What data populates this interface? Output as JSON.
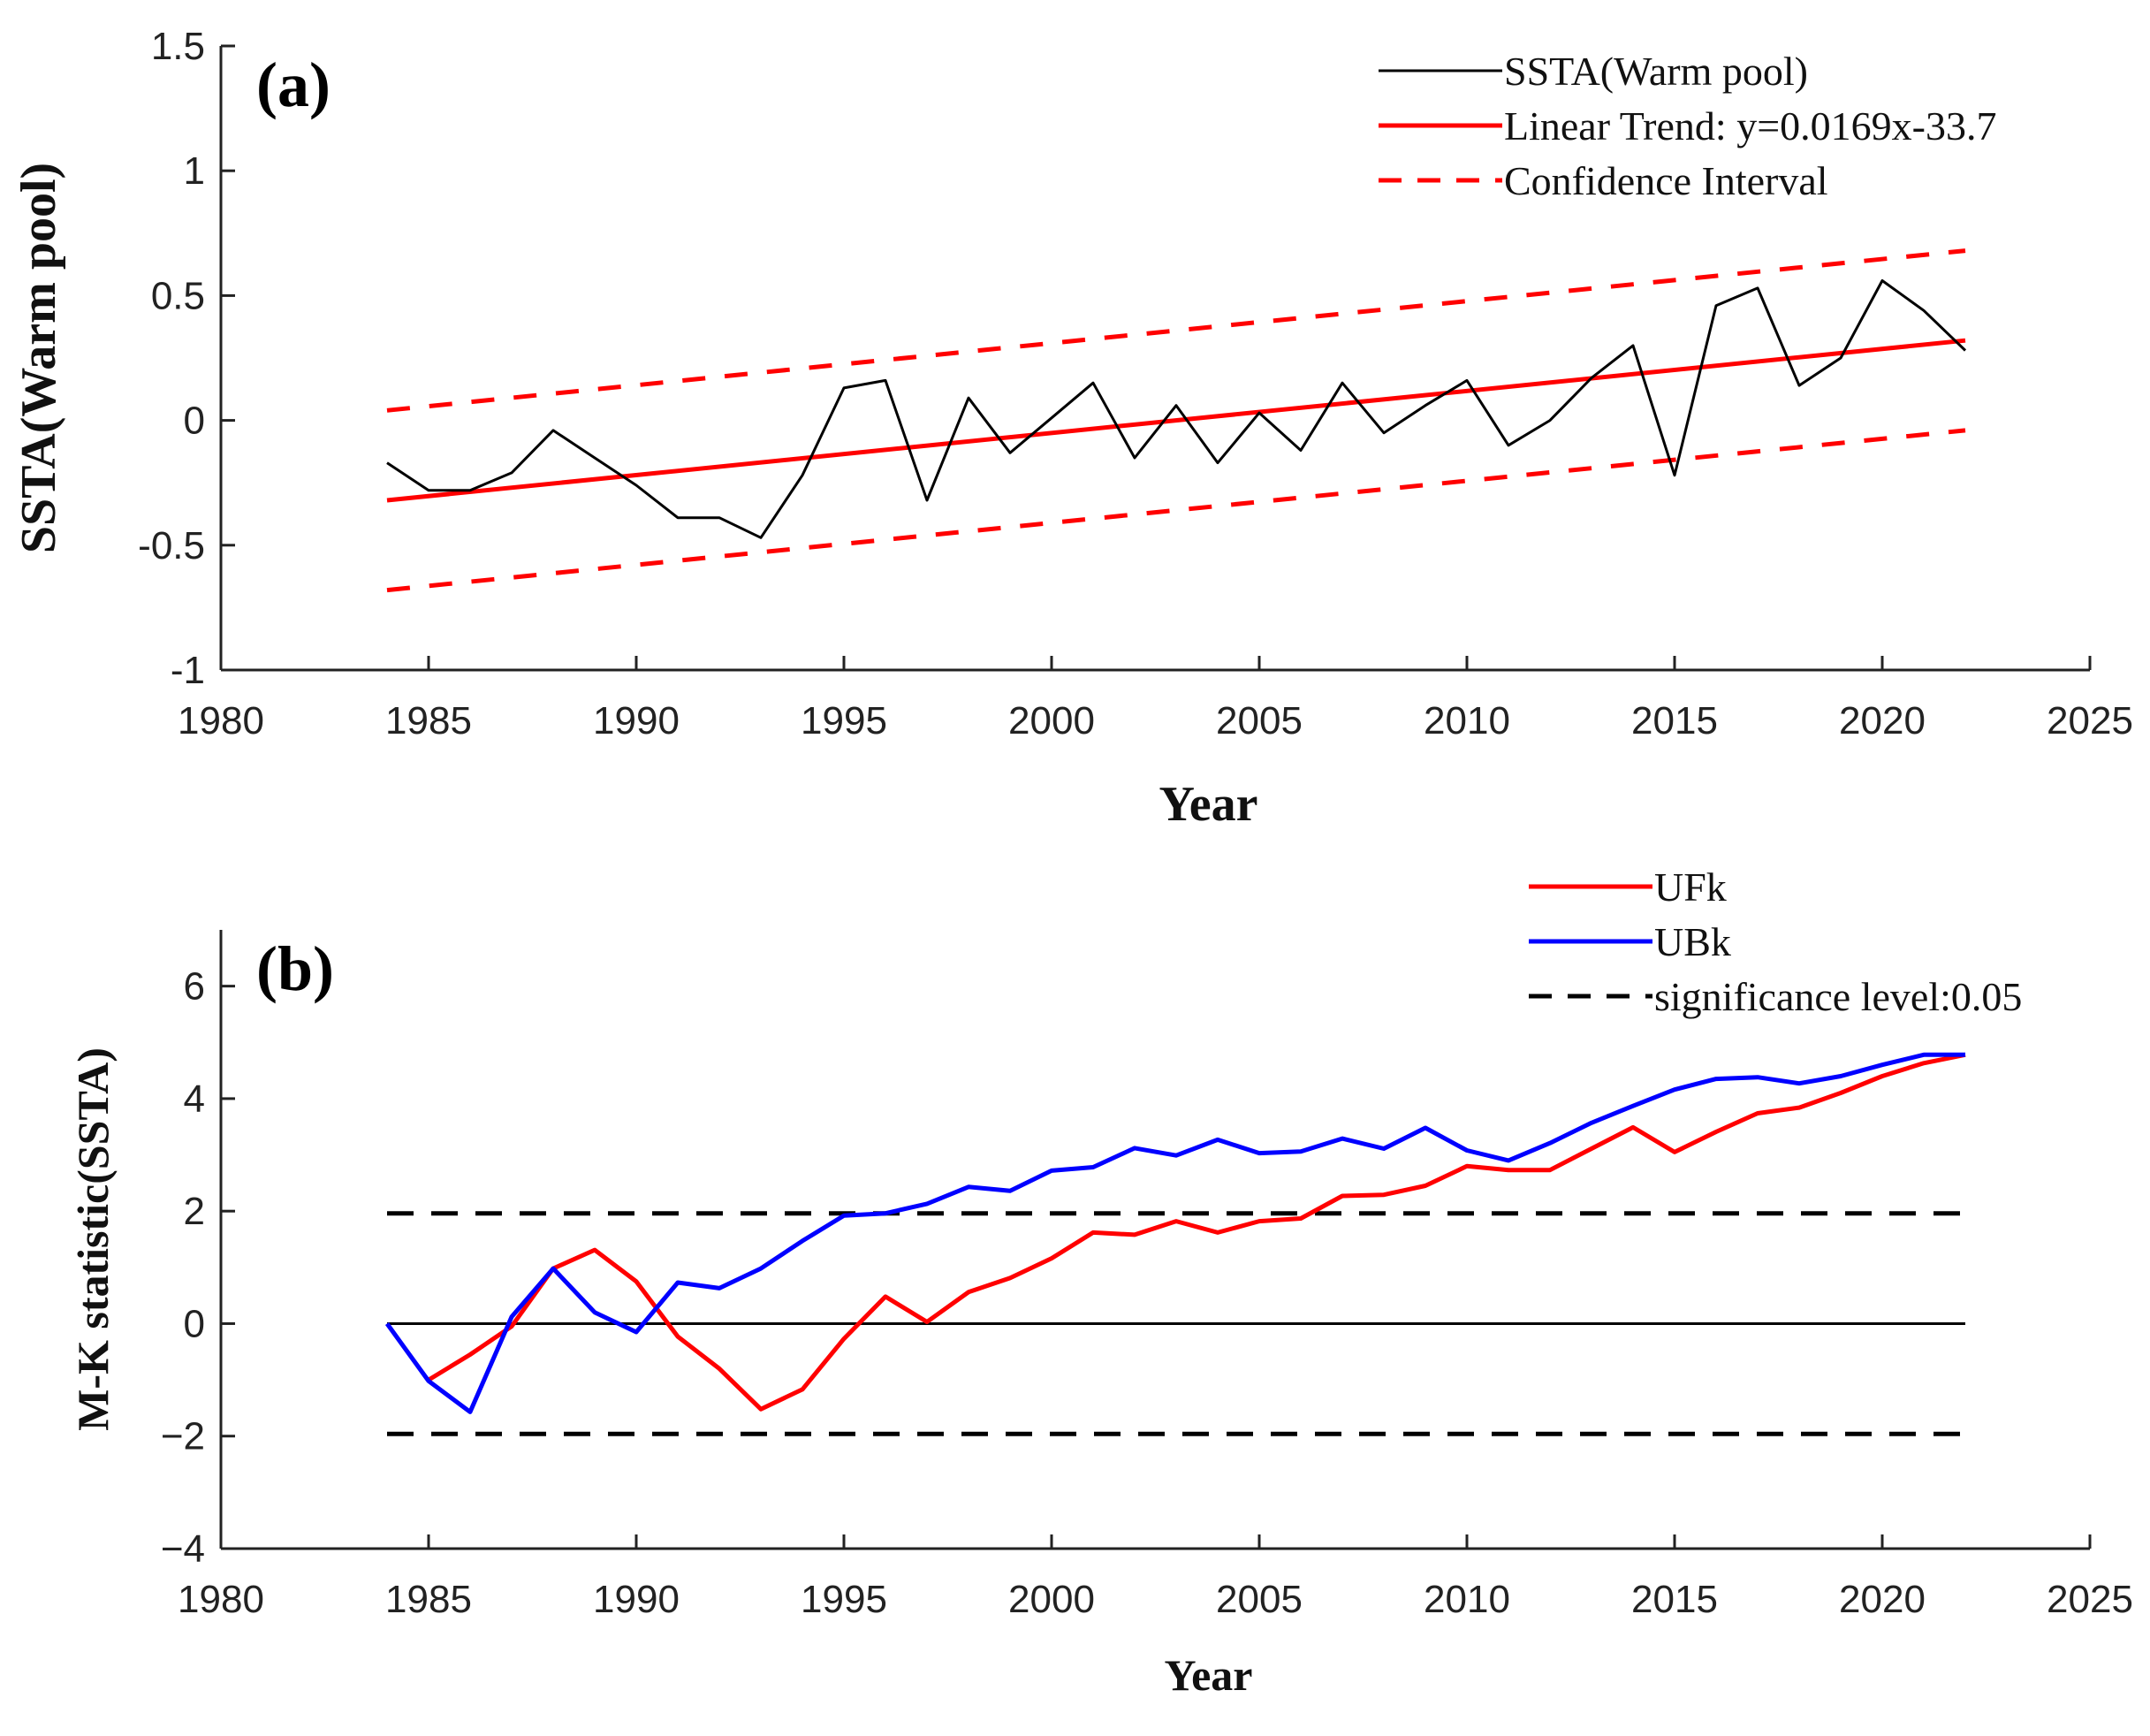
{
  "chart_data": [
    {
      "type": "line",
      "panel_label": "(a)",
      "xlabel": "Year",
      "ylabel": "SSTA(Warm pool)",
      "xlim": [
        1980,
        2025
      ],
      "ylim": [
        -1,
        1.5
      ],
      "xticks": [
        "1980",
        "1985",
        "1990",
        "1995",
        "2000",
        "2005",
        "2010",
        "2015",
        "2020",
        "2025"
      ],
      "yticks": [
        "1.5",
        "1",
        "0.5",
        "0",
        "-0.5",
        "-1"
      ],
      "legend_position": "top-right",
      "x": [
        1984,
        1985,
        1986,
        1987,
        1988,
        1989,
        1990,
        1991,
        1992,
        1993,
        1994,
        1995,
        1996,
        1997,
        1998,
        1999,
        2000,
        2001,
        2002,
        2003,
        2004,
        2005,
        2006,
        2007,
        2008,
        2009,
        2010,
        2011,
        2012,
        2013,
        2014,
        2015,
        2016,
        2017,
        2018,
        2019,
        2020,
        2021,
        2022
      ],
      "series": [
        {
          "name": "SSTA(Warm pool)",
          "color": "#000000",
          "style": "solid",
          "values": [
            -0.17,
            -0.28,
            -0.28,
            -0.21,
            -0.04,
            -0.15,
            -0.26,
            -0.39,
            -0.39,
            -0.47,
            -0.22,
            0.13,
            0.16,
            -0.32,
            0.09,
            -0.13,
            0.01,
            0.15,
            -0.15,
            0.06,
            -0.17,
            0.03,
            -0.12,
            0.15,
            -0.05,
            0.06,
            0.16,
            -0.1,
            0.0,
            0.17,
            0.3,
            -0.22,
            0.46,
            0.53,
            0.14,
            0.25,
            0.56,
            0.44,
            0.28
          ]
        },
        {
          "name": "Linear Trend: y=0.0169x-33.7",
          "color": "#ff0000",
          "style": "solid",
          "x": [
            1984,
            2022
          ],
          "values": [
            -0.32,
            0.32
          ]
        },
        {
          "name": "Confidence Interval",
          "color": "#ff0000",
          "style": "dashed",
          "x": [
            1984,
            2022
          ],
          "values": [
            0.04,
            0.68
          ],
          "lower_values": [
            -0.68,
            -0.04
          ]
        }
      ]
    },
    {
      "type": "line",
      "panel_label": "(b)",
      "xlabel": "Year",
      "ylabel": "M-K statistic(SSTA)",
      "xlim": [
        1980,
        2025
      ],
      "ylim": [
        -4,
        7
      ],
      "xticks": [
        "1980",
        "1985",
        "1990",
        "1995",
        "2000",
        "2005",
        "2010",
        "2015",
        "2020",
        "2025"
      ],
      "yticks": [
        "6",
        "4",
        "2",
        "0",
        "−2",
        "−4"
      ],
      "legend_position": "top-right",
      "x": [
        1984,
        1985,
        1986,
        1987,
        1988,
        1989,
        1990,
        1991,
        1992,
        1993,
        1994,
        1995,
        1996,
        1997,
        1998,
        1999,
        2000,
        2001,
        2002,
        2003,
        2004,
        2005,
        2006,
        2007,
        2008,
        2009,
        2010,
        2011,
        2012,
        2013,
        2014,
        2015,
        2016,
        2017,
        2018,
        2019,
        2020,
        2021,
        2022
      ],
      "series": [
        {
          "name": "UFk",
          "color": "#ff0000",
          "style": "solid",
          "x": [
            1985,
            1986,
            1987,
            1988,
            1989,
            1990,
            1991,
            1992,
            1993,
            1994,
            1995,
            1996,
            1997,
            1998,
            1999,
            2000,
            2001,
            2002,
            2003,
            2004,
            2005,
            2006,
            2007,
            2008,
            2009,
            2010,
            2011,
            2012,
            2013,
            2014,
            2015,
            2016,
            2017,
            2018,
            2019,
            2020,
            2021,
            2022
          ],
          "values": [
            -1.0,
            -0.55,
            -0.05,
            0.98,
            1.31,
            0.75,
            -0.23,
            -0.8,
            -1.52,
            -1.17,
            -0.27,
            0.48,
            0.03,
            0.56,
            0.81,
            1.16,
            1.62,
            1.58,
            1.82,
            1.62,
            1.82,
            1.87,
            2.27,
            2.29,
            2.45,
            2.8,
            2.73,
            2.73,
            3.11,
            3.49,
            3.05,
            3.41,
            3.74,
            3.84,
            4.1,
            4.4,
            4.63,
            4.78
          ]
        },
        {
          "name": "UBk",
          "color": "#0000ff",
          "style": "solid",
          "values": [
            0.0,
            -1.02,
            -1.57,
            0.12,
            0.98,
            0.2,
            -0.15,
            0.73,
            0.63,
            0.98,
            1.47,
            1.92,
            1.96,
            2.13,
            2.43,
            2.36,
            2.72,
            2.78,
            3.12,
            2.99,
            3.27,
            3.03,
            3.06,
            3.29,
            3.11,
            3.48,
            3.08,
            2.9,
            3.21,
            3.57,
            3.87,
            4.16,
            4.35,
            4.38,
            4.27,
            4.4,
            4.6,
            4.78,
            4.78
          ]
        },
        {
          "name": "significance level:0.05",
          "color": "#000000",
          "style": "dashed",
          "x": [
            1984,
            2022
          ],
          "values": [
            1.96,
            1.96
          ],
          "lower_values": [
            -1.96,
            -1.96
          ]
        },
        {
          "name": "zero line",
          "color": "#000000",
          "style": "solid",
          "show_in_legend": false,
          "x": [
            1984,
            2022
          ],
          "values": [
            0,
            0
          ]
        }
      ]
    }
  ]
}
